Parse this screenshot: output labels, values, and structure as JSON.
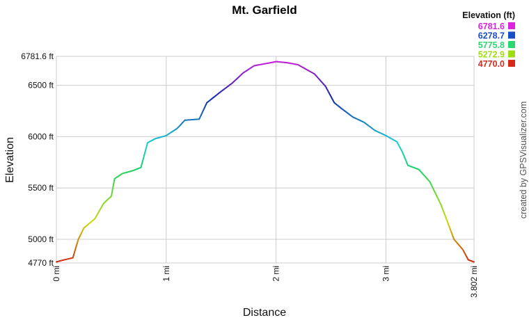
{
  "chart_data": {
    "type": "line",
    "title": "Mt. Garfield",
    "xlabel": "Distance",
    "ylabel": "Elevation",
    "xlim": [
      0,
      3.802
    ],
    "ylim": [
      4770,
      6781.6
    ],
    "x_tick_labels": [
      "0 mi",
      "1 mi",
      "2 mi",
      "3 mi",
      "3.802 mi"
    ],
    "x_ticks": [
      0,
      1,
      2,
      3,
      3.802
    ],
    "y_tick_labels": [
      "4770 ft",
      "5000 ft",
      "5500 ft",
      "6000 ft",
      "6500 ft",
      "6781.6 ft"
    ],
    "y_ticks": [
      4770,
      5000,
      5500,
      6000,
      6500,
      6781.6
    ],
    "grid": true,
    "series": [
      {
        "x": [
          0,
          0.05,
          0.15,
          0.2,
          0.25,
          0.35,
          0.43,
          0.5,
          0.53,
          0.6,
          0.7,
          0.77,
          0.83,
          0.9,
          1.0,
          1.1,
          1.17,
          1.3,
          1.37,
          1.5,
          1.6,
          1.7,
          1.8,
          1.9,
          2.0,
          2.1,
          2.2,
          2.35,
          2.45,
          2.53,
          2.6,
          2.7,
          2.8,
          2.9,
          3.0,
          3.1,
          3.15,
          3.2,
          3.3,
          3.4,
          3.5,
          3.55,
          3.62,
          3.7,
          3.75,
          3.802
        ],
        "y": [
          4780,
          4795,
          4820,
          5000,
          5110,
          5200,
          5350,
          5420,
          5590,
          5640,
          5670,
          5700,
          5940,
          5980,
          6010,
          6080,
          6160,
          6170,
          6330,
          6440,
          6520,
          6620,
          6690,
          6710,
          6730,
          6720,
          6700,
          6610,
          6490,
          6330,
          6270,
          6190,
          6140,
          6060,
          6010,
          5950,
          5850,
          5720,
          5680,
          5560,
          5340,
          5200,
          5000,
          4900,
          4800,
          4780
        ]
      }
    ],
    "color_legend": {
      "title": "Elevation (ft)",
      "position": "top-right",
      "entries": [
        {
          "label": "6781.6",
          "color": "#dd22dd"
        },
        {
          "label": "6278.7",
          "color": "#1a4ec8"
        },
        {
          "label": "5775.8",
          "color": "#2ad870"
        },
        {
          "label": "5272.9",
          "color": "#a0dd10"
        },
        {
          "label": "4770.0",
          "color": "#d82a1a"
        }
      ]
    }
  },
  "credit": "created by GPSVisualizer.com"
}
